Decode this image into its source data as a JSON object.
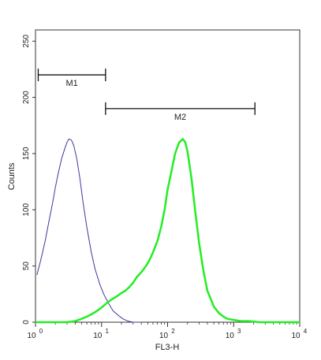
{
  "chart_data": {
    "type": "line",
    "xlabel": "FL3-H",
    "ylabel": "Counts",
    "x_scale": "log",
    "xlim": [
      1,
      10000
    ],
    "ylim": [
      0,
      260
    ],
    "y_ticks": [
      0,
      50,
      100,
      150,
      200,
      250
    ],
    "x_ticks": [
      {
        "value": 1,
        "base": "10",
        "exp": "0"
      },
      {
        "value": 10,
        "base": "10",
        "exp": "1"
      },
      {
        "value": 100,
        "base": "10",
        "exp": "2"
      },
      {
        "value": 1000,
        "base": "10",
        "exp": "3"
      },
      {
        "value": 10000,
        "base": "10",
        "exp": "4"
      }
    ],
    "markers": [
      {
        "label": "M1",
        "x_start": 1.1,
        "x_end": 11.5,
        "y": 220
      },
      {
        "label": "M2",
        "x_start": 11.5,
        "x_end": 2100,
        "y": 190
      }
    ],
    "series": [
      {
        "color": "#3a3a9a",
        "x": [
          1.05,
          1.2,
          1.4,
          1.6,
          1.8,
          2.0,
          2.2,
          2.5,
          2.8,
          3.0,
          3.2,
          3.5,
          3.8,
          4.2,
          4.7,
          5.2,
          6.0,
          7.0,
          8.0,
          9.5,
          11,
          13,
          15,
          18,
          21,
          25,
          30,
          40
        ],
        "y": [
          42,
          55,
          72,
          90,
          105,
          120,
          132,
          146,
          155,
          160,
          163,
          162,
          157,
          146,
          128,
          108,
          84,
          62,
          47,
          33,
          24,
          16,
          10,
          6,
          3,
          1,
          0,
          0
        ]
      },
      {
        "color": "#22ee22",
        "x": [
          1,
          1.5,
          2.2,
          3,
          4,
          5,
          6,
          7,
          8,
          9,
          10,
          12,
          14,
          16,
          18,
          20,
          23,
          26,
          30,
          34,
          38,
          42,
          47,
          53,
          60,
          70,
          80,
          90,
          100,
          115,
          130,
          150,
          170,
          185,
          200,
          230,
          260,
          300,
          350,
          400,
          500,
          600,
          700,
          800,
          1000,
          1300,
          1700,
          2500,
          5000,
          10000
        ],
        "y": [
          0,
          0,
          0,
          0,
          1,
          3,
          5,
          7,
          9,
          11,
          13,
          17,
          20,
          22,
          24,
          26,
          28,
          31,
          35,
          40,
          43,
          46,
          50,
          55,
          62,
          72,
          85,
          100,
          118,
          135,
          150,
          160,
          163,
          160,
          152,
          128,
          100,
          70,
          45,
          28,
          14,
          8,
          5,
          3,
          2,
          1,
          1,
          0,
          0,
          0
        ]
      }
    ]
  }
}
